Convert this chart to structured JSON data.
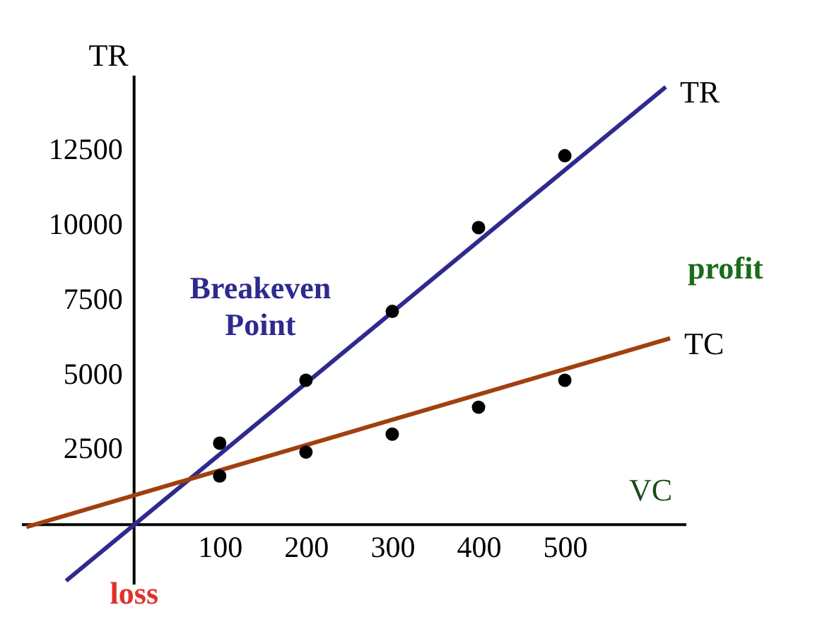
{
  "chart_data": {
    "type": "line",
    "xlabel": "VC",
    "ylabel": "TR",
    "xlim": [
      -130,
      640
    ],
    "ylim": [
      -2000,
      15000
    ],
    "xticks": [
      100,
      200,
      300,
      400,
      500
    ],
    "yticks": [
      2500,
      5000,
      7500,
      10000,
      12500
    ],
    "series": [
      {
        "name": "TR",
        "color": "#2e2a8f",
        "x": [
          -78,
          617
        ],
        "values": [
          -1900,
          14600
        ]
      },
      {
        "name": "TC",
        "color": "#a0400f",
        "x": [
          -124,
          622
        ],
        "values": [
          -100,
          6200
        ]
      },
      {
        "type": "scatter",
        "color": "#000000",
        "x": [
          100,
          200,
          300,
          400,
          500
        ],
        "values": [
          2700,
          4800,
          7100,
          9900,
          12300
        ]
      },
      {
        "type": "scatter",
        "color": "#000000",
        "x": [
          100,
          200,
          300,
          400,
          500
        ],
        "values": [
          1600,
          2400,
          3000,
          3900,
          4800
        ]
      }
    ],
    "annotations": [
      "Breakeven Point",
      "profit",
      "loss"
    ],
    "grid": false
  }
}
